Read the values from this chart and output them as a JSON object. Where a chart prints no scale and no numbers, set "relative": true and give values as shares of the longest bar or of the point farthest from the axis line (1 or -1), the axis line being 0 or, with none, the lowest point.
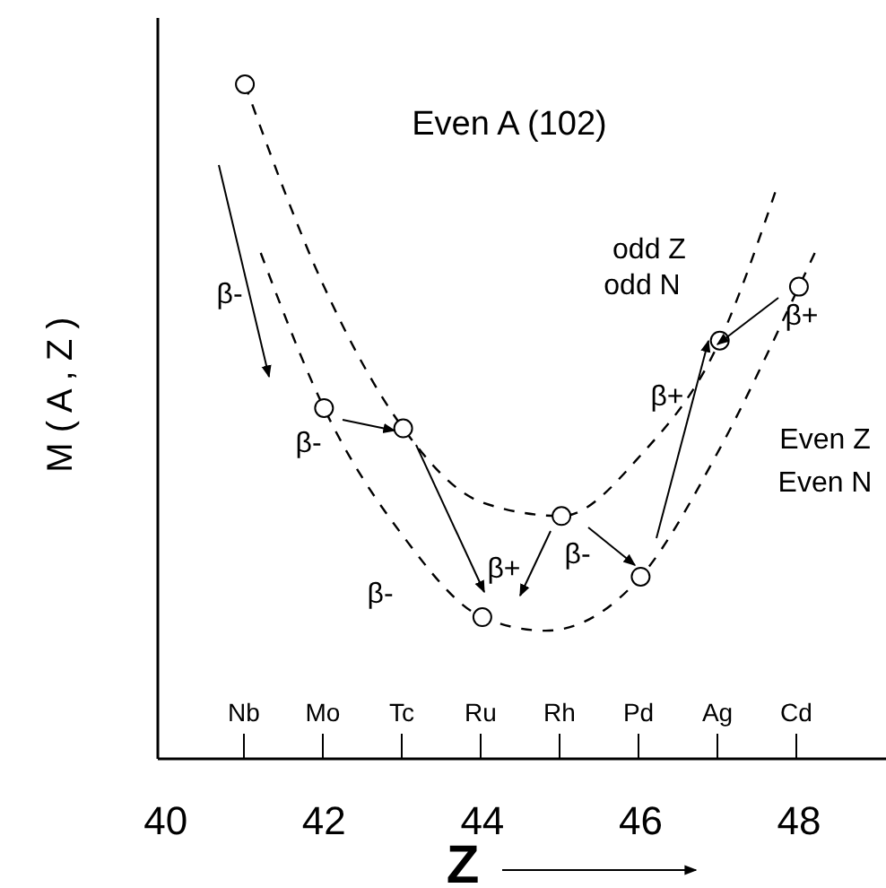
{
  "chart_data": {
    "type": "scatter",
    "relative": true,
    "title": "Even A (102)",
    "xlabel": "Z",
    "ylabel": "M ( A , Z )",
    "xlim": [
      39.9,
      49.1
    ],
    "xticks": [
      40,
      42,
      44,
      46,
      48
    ],
    "series": [
      {
        "type": "line",
        "line_style": "dashed",
        "marker": "none",
        "color": "#000000",
        "x": [
          41,
          42,
          43,
          44,
          45,
          46,
          47,
          47.7
        ],
        "values": [
          1.0,
          0.7,
          0.49,
          0.38,
          0.36,
          0.45,
          0.62,
          0.84
        ]
      },
      {
        "type": "line",
        "line_style": "dashed",
        "marker": "none",
        "color": "#000000",
        "x": [
          41.2,
          42,
          43,
          44,
          44.8,
          46,
          47,
          48,
          48.2
        ],
        "values": [
          0.75,
          0.52,
          0.33,
          0.21,
          0.19,
          0.27,
          0.46,
          0.7,
          0.75
        ]
      },
      {
        "marker": "circle",
        "color": "#000000",
        "x": [
          41,
          42,
          43,
          44,
          45,
          46,
          47,
          48
        ],
        "values": [
          1.0,
          0.52,
          0.49,
          0.21,
          0.36,
          0.27,
          0.62,
          0.7
        ]
      }
    ],
    "annotations": [
      "Nb",
      "Mo",
      "Tc",
      "Ru",
      "Rh",
      "Pd",
      "Ag",
      "Cd",
      "β-",
      "β-",
      "β-",
      "β+",
      "β-",
      "β+",
      "β+",
      "odd Z",
      "odd N",
      "Even Z",
      "Even N"
    ]
  }
}
